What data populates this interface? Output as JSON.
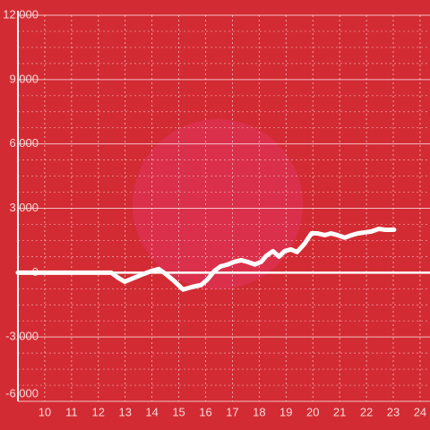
{
  "chart_data": {
    "type": "line",
    "x": [
      9,
      12.48,
      12.75,
      12.98,
      13.32,
      13.65,
      13.99,
      14.25,
      14.49,
      14.82,
      15.16,
      15.49,
      15.83,
      16.06,
      16.33,
      16.56,
      16.83,
      17.07,
      17.33,
      17.57,
      17.84,
      18.07,
      18.27,
      18.51,
      18.74,
      18.94,
      19.18,
      19.41,
      19.68,
      19.95,
      20.18,
      20.45,
      20.68,
      20.92,
      21.19,
      21.45,
      21.69,
      21.96,
      22.19,
      22.46,
      22.69,
      23.03
    ],
    "series": [
      {
        "color": "#ffffff",
        "values": [
          0,
          0,
          -250,
          -420,
          -250,
          -80,
          80,
          170,
          -40,
          -380,
          -790,
          -670,
          -580,
          -330,
          80,
          290,
          380,
          500,
          580,
          500,
          380,
          500,
          790,
          1000,
          750,
          1000,
          1080,
          960,
          1330,
          1830,
          1830,
          1750,
          1830,
          1750,
          1630,
          1750,
          1830,
          1880,
          1920,
          2040,
          2000,
          2000
        ]
      }
    ],
    "xlim": [
      9,
      24.37
    ],
    "xticks": [
      10,
      11,
      12,
      13,
      14,
      15,
      16,
      17,
      18,
      19,
      20,
      21,
      22,
      23,
      24
    ],
    "ylim": [
      -6000,
      12000
    ],
    "yticks": [
      {
        "value": -6000,
        "label": "-6,000"
      },
      {
        "value": -3000,
        "label": "-3,000"
      },
      0,
      {
        "value": 3000,
        "label": "3,000"
      },
      {
        "value": 6000,
        "label": "6,000"
      },
      {
        "value": 9000,
        "label": "9,000"
      },
      {
        "value": 12000,
        "label": "12,000"
      }
    ],
    "grid": true
  }
}
